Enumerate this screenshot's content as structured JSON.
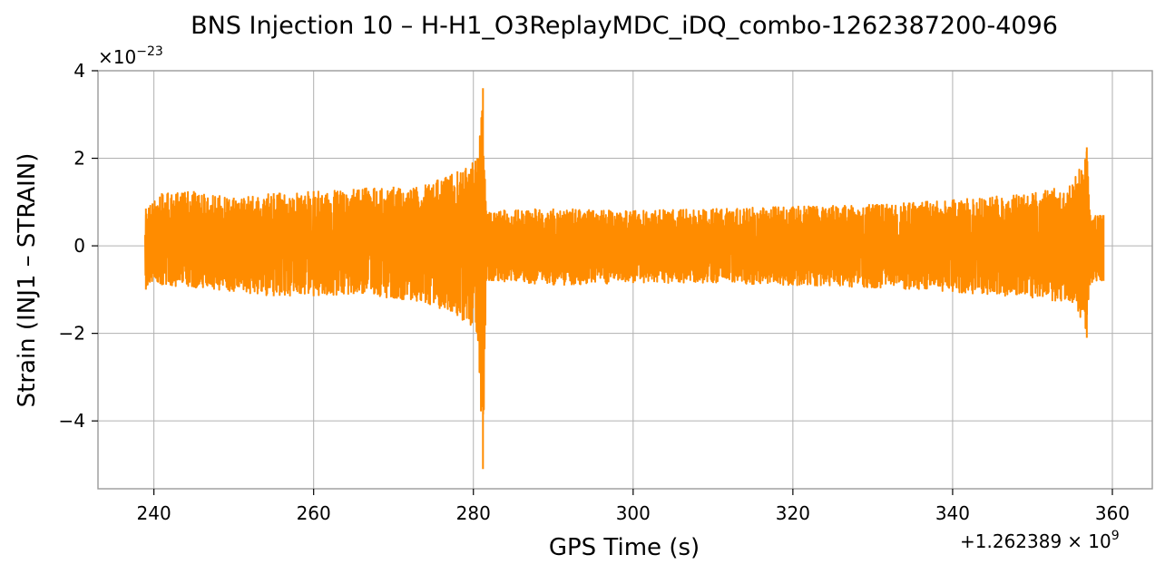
{
  "chart_data": {
    "type": "line",
    "title": "BNS Injection 10 – H-H1_O3ReplayMDC_iDQ_combo-1262387200-4096",
    "xlabel": "GPS Time (s)",
    "ylabel": "Strain (INJ1 – STRAIN)",
    "x_offset_text": "+1.262389",
    "x_offset_suffix": "× 10",
    "x_offset_exponent": "9",
    "y_scale_text": "×10",
    "y_scale_exponent": "−23",
    "xlim": [
      233,
      365
    ],
    "ylim": [
      -5.55,
      4
    ],
    "grid": true,
    "color": "#ff8c00",
    "x_ticks": [
      240,
      260,
      280,
      300,
      320,
      340,
      360
    ],
    "x_tick_labels": [
      "240",
      "260",
      "280",
      "300",
      "320",
      "340",
      "360"
    ],
    "y_ticks": [
      -4,
      -2,
      0,
      2,
      4
    ],
    "y_tick_labels": [
      "−4",
      "−2",
      "0",
      "2",
      "4"
    ],
    "series": [
      {
        "x_range": [
          238.9,
          358.9
        ],
        "envelope": [
          {
            "x": 239.0,
            "upper": 0.85,
            "lower": -1.0
          },
          {
            "x": 241.0,
            "upper": 1.2,
            "lower": -0.9
          },
          {
            "x": 245.0,
            "upper": 1.25,
            "lower": -0.95
          },
          {
            "x": 250.0,
            "upper": 1.1,
            "lower": -1.05
          },
          {
            "x": 255.0,
            "upper": 1.2,
            "lower": -1.15
          },
          {
            "x": 260.0,
            "upper": 1.25,
            "lower": -1.15
          },
          {
            "x": 265.0,
            "upper": 1.3,
            "lower": -1.1
          },
          {
            "x": 270.0,
            "upper": 1.35,
            "lower": -1.2
          },
          {
            "x": 274.0,
            "upper": 1.4,
            "lower": -1.3
          },
          {
            "x": 278.0,
            "upper": 1.7,
            "lower": -1.6
          },
          {
            "x": 280.5,
            "upper": 2.0,
            "lower": -2.0
          },
          {
            "x": 281.2,
            "upper": 3.6,
            "lower": -5.1
          },
          {
            "x": 281.6,
            "upper": 0.8,
            "lower": -0.8
          },
          {
            "x": 290.0,
            "upper": 0.85,
            "lower": -0.9
          },
          {
            "x": 300.0,
            "upper": 0.8,
            "lower": -0.85
          },
          {
            "x": 310.0,
            "upper": 0.85,
            "lower": -0.85
          },
          {
            "x": 320.0,
            "upper": 0.9,
            "lower": -0.9
          },
          {
            "x": 330.0,
            "upper": 0.95,
            "lower": -0.95
          },
          {
            "x": 340.0,
            "upper": 1.05,
            "lower": -1.05
          },
          {
            "x": 350.0,
            "upper": 1.2,
            "lower": -1.2
          },
          {
            "x": 355.0,
            "upper": 1.4,
            "lower": -1.3
          },
          {
            "x": 356.8,
            "upper": 2.25,
            "lower": -2.1
          },
          {
            "x": 357.2,
            "upper": 0.7,
            "lower": -0.9
          },
          {
            "x": 358.9,
            "upper": 0.7,
            "lower": -0.8
          }
        ]
      }
    ]
  }
}
